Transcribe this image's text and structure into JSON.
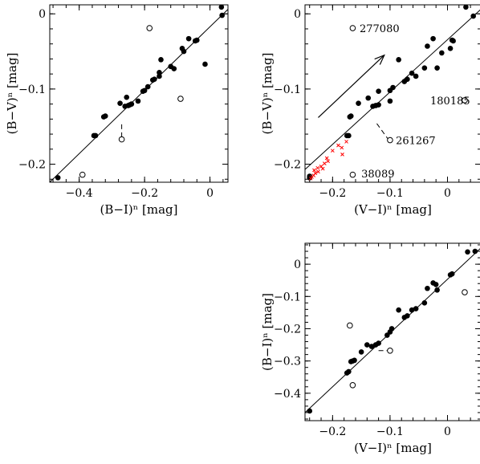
{
  "chart_data": [
    {
      "type": "scatter",
      "xlabel": "(B−I)ⁿ [mag]",
      "ylabel": "(B−V)ⁿ [mag]",
      "xlim": [
        -0.49,
        0.055
      ],
      "ylim": [
        -0.224,
        0.012
      ],
      "xticks": [
        -0.4,
        -0.2,
        0
      ],
      "xtick_labels": [
        "−0.4",
        "−0.2",
        "0"
      ],
      "yticks": [
        0,
        -0.1,
        -0.2
      ],
      "ytick_labels": [
        "0",
        "−0.1",
        "−0.2"
      ],
      "fit_line": [
        [
          -0.49,
          -0.224
        ],
        [
          0.055,
          0.006
        ]
      ],
      "series": [
        {
          "marker": "filled",
          "points": [
            [
              -0.465,
              -0.218
            ],
            [
              -0.355,
              -0.162
            ],
            [
              -0.35,
              -0.162
            ],
            [
              -0.325,
              -0.137
            ],
            [
              -0.32,
              -0.136
            ],
            [
              -0.275,
              -0.119
            ],
            [
              -0.26,
              -0.123
            ],
            [
              -0.255,
              -0.111
            ],
            [
              -0.25,
              -0.122
            ],
            [
              -0.245,
              -0.121
            ],
            [
              -0.24,
              -0.12
            ],
            [
              -0.22,
              -0.116
            ],
            [
              -0.205,
              -0.103
            ],
            [
              -0.2,
              -0.102
            ],
            [
              -0.19,
              -0.097
            ],
            [
              -0.175,
              -0.088
            ],
            [
              -0.17,
              -0.087
            ],
            [
              -0.155,
              -0.078
            ],
            [
              -0.155,
              -0.083
            ],
            [
              -0.15,
              -0.061
            ],
            [
              -0.12,
              -0.07
            ],
            [
              -0.11,
              -0.073
            ],
            [
              -0.085,
              -0.046
            ],
            [
              -0.08,
              -0.05
            ],
            [
              -0.065,
              -0.033
            ],
            [
              -0.045,
              -0.036
            ],
            [
              -0.04,
              -0.035
            ],
            [
              -0.015,
              -0.067
            ],
            [
              0.035,
              0.009
            ],
            [
              0.037,
              -0.002
            ]
          ]
        },
        {
          "marker": "open",
          "points": [
            [
              -0.185,
              -0.019
            ],
            [
              -0.27,
              -0.167
            ],
            [
              -0.39,
              -0.214
            ],
            [
              -0.09,
              -0.113
            ]
          ]
        }
      ],
      "connectors": [
        [
          [
            -0.27,
            -0.147
          ],
          [
            -0.27,
            -0.167
          ]
        ]
      ],
      "annotations": []
    },
    {
      "type": "scatter",
      "xlabel": "(V−I)ⁿ [mag]",
      "ylabel": "(B−V)ⁿ [mag]",
      "xlim": [
        -0.248,
        0.058
      ],
      "ylim": [
        -0.224,
        0.012
      ],
      "xticks": [
        -0.2,
        -0.1,
        0
      ],
      "xtick_labels": [
        "−0.2",
        "−0.1",
        "0"
      ],
      "yticks": [
        0,
        -0.1,
        -0.2
      ],
      "ytick_labels": [
        "0",
        "−0.1",
        "−0.2"
      ],
      "fit_line": [
        [
          -0.248,
          -0.207
        ],
        [
          0.058,
          0.006
        ]
      ],
      "arrow": [
        [
          -0.225,
          -0.138
        ],
        [
          -0.11,
          -0.055
        ]
      ],
      "series": [
        {
          "marker": "filled",
          "points": [
            [
              -0.24,
              -0.218
            ],
            [
              -0.24,
              -0.216
            ],
            [
              -0.175,
              -0.162
            ],
            [
              -0.172,
              -0.162
            ],
            [
              -0.17,
              -0.137
            ],
            [
              -0.168,
              -0.136
            ],
            [
              -0.155,
              -0.119
            ],
            [
              -0.138,
              -0.112
            ],
            [
              -0.13,
              -0.123
            ],
            [
              -0.125,
              -0.122
            ],
            [
              -0.12,
              -0.121
            ],
            [
              -0.12,
              -0.103
            ],
            [
              -0.1,
              -0.116
            ],
            [
              -0.1,
              -0.102
            ],
            [
              -0.095,
              -0.098
            ],
            [
              -0.085,
              -0.061
            ],
            [
              -0.075,
              -0.09
            ],
            [
              -0.07,
              -0.087
            ],
            [
              -0.062,
              -0.079
            ],
            [
              -0.055,
              -0.083
            ],
            [
              -0.04,
              -0.072
            ],
            [
              -0.035,
              -0.043
            ],
            [
              -0.025,
              -0.033
            ],
            [
              -0.018,
              -0.072
            ],
            [
              -0.01,
              -0.052
            ],
            [
              0.005,
              -0.046
            ],
            [
              0.008,
              -0.035
            ],
            [
              0.01,
              -0.036
            ],
            [
              0.032,
              0.009
            ],
            [
              0.045,
              -0.003
            ]
          ]
        },
        {
          "marker": "open",
          "points": [
            [
              -0.165,
              -0.019
            ],
            [
              0.03,
              -0.115
            ],
            [
              -0.1,
              -0.168
            ],
            [
              -0.165,
              -0.214
            ]
          ]
        },
        {
          "marker": "cross",
          "color": "#ff0000",
          "points": [
            [
              -0.238,
              -0.219
            ],
            [
              -0.236,
              -0.217
            ],
            [
              -0.233,
              -0.215
            ],
            [
              -0.23,
              -0.212
            ],
            [
              -0.232,
              -0.208
            ],
            [
              -0.226,
              -0.205
            ],
            [
              -0.22,
              -0.203
            ],
            [
              -0.214,
              -0.199
            ],
            [
              -0.208,
              -0.196
            ],
            [
              -0.21,
              -0.192
            ],
            [
              -0.2,
              -0.182
            ],
            [
              -0.184,
              -0.178
            ],
            [
              -0.183,
              -0.187
            ],
            [
              -0.176,
              -0.17
            ],
            [
              -0.225,
              -0.21
            ],
            [
              -0.217,
              -0.206
            ],
            [
              -0.19,
              -0.175
            ]
          ]
        }
      ],
      "connectors": [
        [
          [
            -0.123,
            -0.146
          ],
          [
            -0.104,
            -0.166
          ]
        ]
      ],
      "annotations": [
        {
          "text": "277080",
          "x": -0.153,
          "y": -0.019
        },
        {
          "text": "180185",
          "x": -0.03,
          "y": -0.115
        },
        {
          "text": "261267",
          "x": -0.09,
          "y": -0.168
        },
        {
          "text": "38089",
          "x": -0.15,
          "y": -0.212
        }
      ]
    },
    {
      "type": "scatter",
      "xlabel": "(V−I)ⁿ [mag]",
      "ylabel": "(B−I)ⁿ [mag]",
      "xlim": [
        -0.248,
        0.058
      ],
      "ylim": [
        -0.485,
        0.065
      ],
      "xticks": [
        -0.2,
        -0.1,
        0
      ],
      "xtick_labels": [
        "−0.2",
        "−0.1",
        "0"
      ],
      "yticks": [
        0,
        -0.1,
        -0.2,
        -0.3,
        -0.4
      ],
      "ytick_labels": [
        "0",
        "−0.1",
        "−0.2",
        "−0.3",
        "−0.4"
      ],
      "fit_line": [
        [
          -0.248,
          -0.46
        ],
        [
          0.058,
          0.05
        ]
      ],
      "series": [
        {
          "marker": "filled",
          "points": [
            [
              -0.24,
              -0.455
            ],
            [
              -0.175,
              -0.337
            ],
            [
              -0.172,
              -0.333
            ],
            [
              -0.168,
              -0.302
            ],
            [
              -0.165,
              -0.3
            ],
            [
              -0.162,
              -0.298
            ],
            [
              -0.15,
              -0.272
            ],
            [
              -0.14,
              -0.25
            ],
            [
              -0.132,
              -0.255
            ],
            [
              -0.125,
              -0.25
            ],
            [
              -0.12,
              -0.245
            ],
            [
              -0.105,
              -0.22
            ],
            [
              -0.1,
              -0.21
            ],
            [
              -0.097,
              -0.2
            ],
            [
              -0.085,
              -0.142
            ],
            [
              -0.075,
              -0.165
            ],
            [
              -0.07,
              -0.16
            ],
            [
              -0.062,
              -0.142
            ],
            [
              -0.055,
              -0.138
            ],
            [
              -0.04,
              -0.12
            ],
            [
              -0.035,
              -0.075
            ],
            [
              -0.025,
              -0.058
            ],
            [
              -0.02,
              -0.063
            ],
            [
              -0.018,
              -0.08
            ],
            [
              0.005,
              -0.033
            ],
            [
              0.008,
              -0.03
            ],
            [
              0.035,
              0.038
            ],
            [
              0.048,
              0.04
            ]
          ]
        },
        {
          "marker": "open",
          "points": [
            [
              -0.17,
              -0.19
            ],
            [
              -0.165,
              -0.375
            ],
            [
              -0.1,
              -0.268
            ],
            [
              0.03,
              -0.087
            ]
          ]
        }
      ],
      "connectors": [
        [
          [
            -0.12,
            -0.268
          ],
          [
            -0.1,
            -0.268
          ]
        ]
      ],
      "annotations": []
    }
  ]
}
